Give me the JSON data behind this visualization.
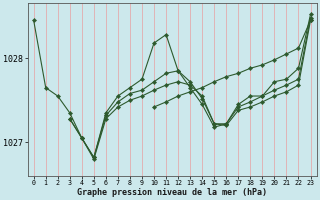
{
  "bg_color": "#cce8ec",
  "grid_color_v": "#e8a0a0",
  "line_color": "#2d5a2d",
  "marker_color": "#2d5a2d",
  "title": "Graphe pression niveau de la mer (hPa)",
  "ylim": [
    1026.6,
    1028.65
  ],
  "yticks": [
    1027.0,
    1028.0
  ],
  "xlim": [
    -0.5,
    23.5
  ],
  "xticks": [
    0,
    1,
    2,
    3,
    4,
    5,
    6,
    7,
    8,
    9,
    10,
    11,
    12,
    13,
    14,
    15,
    16,
    17,
    18,
    19,
    20,
    21,
    22,
    23
  ],
  "series1": [
    1028.45,
    1027.65,
    1027.55,
    1027.35,
    1027.05,
    1026.82,
    1027.35,
    1027.55,
    1027.65,
    1027.75,
    1028.18,
    1028.28,
    1027.85,
    1027.65,
    1027.45,
    1027.18,
    1027.22,
    1027.45,
    1027.55,
    1027.55,
    1027.72,
    1027.75,
    1027.88,
    1028.52
  ],
  "series2_start": 3,
  "series2": [
    1027.28,
    1027.05,
    1026.82,
    1027.32,
    1027.48,
    1027.58,
    1027.62,
    1027.72,
    1027.82,
    1027.85,
    1027.72,
    1027.52,
    1027.22,
    1027.22,
    1027.42,
    1027.48,
    1027.55,
    1027.62,
    1027.68,
    1027.75,
    1028.48
  ],
  "series3_start": 3,
  "series3": [
    1027.28,
    1027.05,
    1026.8,
    1027.28,
    1027.42,
    1027.5,
    1027.55,
    1027.62,
    1027.68,
    1027.72,
    1027.68,
    1027.55,
    1027.22,
    1027.2,
    1027.38,
    1027.42,
    1027.48,
    1027.55,
    1027.6,
    1027.68,
    1028.45
  ],
  "series4_start": 10,
  "series4": [
    1027.42,
    1027.48,
    1027.55,
    1027.6,
    1027.65,
    1027.72,
    1027.78,
    1027.82,
    1027.88,
    1027.92,
    1027.98,
    1028.05,
    1028.12,
    1028.45
  ]
}
